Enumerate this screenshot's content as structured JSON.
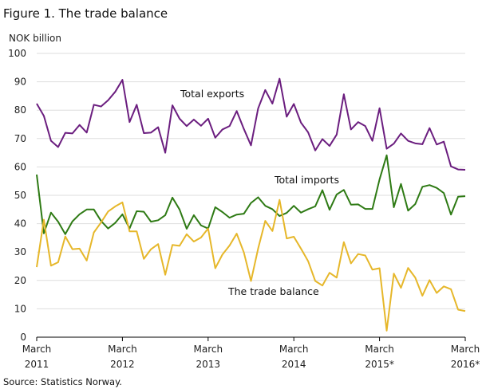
{
  "chart_data": {
    "type": "line",
    "title": "Figure 1. The trade balance",
    "ylabel": "NOK billion",
    "ylim": [
      0,
      100
    ],
    "yticks": [
      0,
      10,
      20,
      30,
      40,
      50,
      60,
      70,
      80,
      90,
      100
    ],
    "x_tick_labels": [
      {
        "month": "March",
        "year": "2011"
      },
      {
        "month": "March",
        "year": "2012"
      },
      {
        "month": "March",
        "year": "2013"
      },
      {
        "month": "March",
        "year": "2014"
      },
      {
        "month": "March",
        "year": "2015*"
      },
      {
        "month": "March",
        "year": "2016*"
      }
    ],
    "x_tick_months": [
      "2011-03",
      "2012-03",
      "2013-03",
      "2014-03",
      "2015-03",
      "2016-03"
    ],
    "grid": "horizontal",
    "months": [
      "2011-03",
      "2011-04",
      "2011-05",
      "2011-06",
      "2011-07",
      "2011-08",
      "2011-09",
      "2011-10",
      "2011-11",
      "2011-12",
      "2012-01",
      "2012-02",
      "2012-03",
      "2012-04",
      "2012-05",
      "2012-06",
      "2012-07",
      "2012-08",
      "2012-09",
      "2012-10",
      "2012-11",
      "2012-12",
      "2013-01",
      "2013-02",
      "2013-03",
      "2013-04",
      "2013-05",
      "2013-06",
      "2013-07",
      "2013-08",
      "2013-09",
      "2013-10",
      "2013-11",
      "2013-12",
      "2014-01",
      "2014-02",
      "2014-03",
      "2014-04",
      "2014-05",
      "2014-06",
      "2014-07",
      "2014-08",
      "2014-09",
      "2014-10",
      "2014-11",
      "2014-12",
      "2015-01",
      "2015-02",
      "2015-03",
      "2015-04",
      "2015-05",
      "2015-06",
      "2015-07",
      "2015-08",
      "2015-09",
      "2015-10",
      "2015-11",
      "2015-12",
      "2016-01",
      "2016-02",
      "2016-03"
    ],
    "series": [
      {
        "name": "Total exports",
        "color": "#6b1e7f",
        "values": [
          82.3,
          78,
          69.2,
          67,
          72,
          71.8,
          74.8,
          72.1,
          81.9,
          81.3,
          83.5,
          86.5,
          90.7,
          75.8,
          81.9,
          71.9,
          72.1,
          74,
          65,
          81.7,
          77,
          74.4,
          76.7,
          74.5,
          77,
          70.3,
          73.2,
          74.4,
          79.7,
          73.4,
          67.6,
          80.6,
          87.1,
          82.3,
          91.1,
          77.7,
          82.2,
          75.6,
          72.2,
          65.8,
          69.8,
          67.4,
          71.4,
          85.6,
          73.2,
          75.8,
          74.4,
          69.2,
          80.7,
          66.4,
          68.2,
          71.8,
          69.2,
          68.3,
          68,
          73.7,
          67.9,
          68.9,
          60.2,
          59.1,
          59
        ]
      },
      {
        "name": "Total imports",
        "color": "#2e7a14",
        "values": [
          57.3,
          36.6,
          43.9,
          40.7,
          36.3,
          40.8,
          43.3,
          45,
          45,
          41,
          38.3,
          40.3,
          43.3,
          38.3,
          44.4,
          44.2,
          40.7,
          41.2,
          43,
          49.2,
          45,
          38.2,
          43,
          39.4,
          38.3,
          45.8,
          44.1,
          42.1,
          43.2,
          43.5,
          47.3,
          49.3,
          46.3,
          45.1,
          42.7,
          43.8,
          46.3,
          43.9,
          45.1,
          46.1,
          51.8,
          44.9,
          50.3,
          51.9,
          46.7,
          46.8,
          45.2,
          45.2,
          55.6,
          64.1,
          45.8,
          54,
          44.6,
          46.9,
          53,
          53.6,
          52.6,
          50.8,
          43.2,
          49.5,
          49.7
        ]
      },
      {
        "name": "The trade balance",
        "color": "#e6b72a",
        "values": [
          24.7,
          41.4,
          25.2,
          26.4,
          35.5,
          31,
          31.2,
          27,
          36.9,
          40.4,
          44.3,
          46.1,
          47.5,
          37.3,
          37.3,
          27.6,
          31,
          32.8,
          22,
          32.5,
          32.2,
          36.3,
          33.7,
          35.1,
          38.3,
          24.3,
          29.1,
          32.3,
          36.5,
          29.9,
          19.8,
          31.2,
          41,
          37.4,
          48.4,
          34.8,
          35.4,
          31.2,
          26.8,
          19.8,
          18.2,
          22.7,
          21,
          33.5,
          26,
          29.3,
          28.8,
          23.8,
          24.3,
          2.3,
          22.4,
          17.4,
          24.4,
          21,
          14.6,
          20.1,
          15.6,
          17.9,
          16.9,
          9.7,
          9.2
        ]
      }
    ],
    "annotations": [
      {
        "text": "Total exports",
        "series": 0
      },
      {
        "text": "Total imports",
        "series": 1
      },
      {
        "text": "The trade balance",
        "series": 2
      }
    ],
    "source": "Source: Statistics Norway."
  }
}
